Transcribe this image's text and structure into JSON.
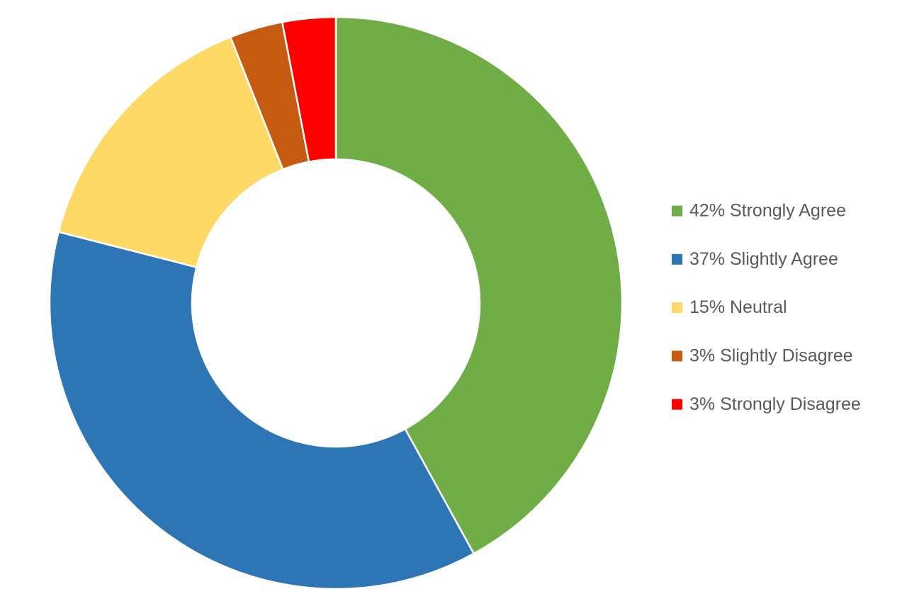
{
  "chart_data": {
    "type": "donut",
    "categories": [
      "42% Strongly Agree",
      "37% Slightly Agree",
      "15% Neutral",
      "3% Slightly Disagree",
      "3% Strongly Disagree"
    ],
    "values": [
      42,
      37,
      15,
      3,
      3
    ],
    "colors": [
      "#70ad47",
      "#2e75b6",
      "#ffd966",
      "#c55a11",
      "#ff0000"
    ],
    "legend": "right"
  }
}
